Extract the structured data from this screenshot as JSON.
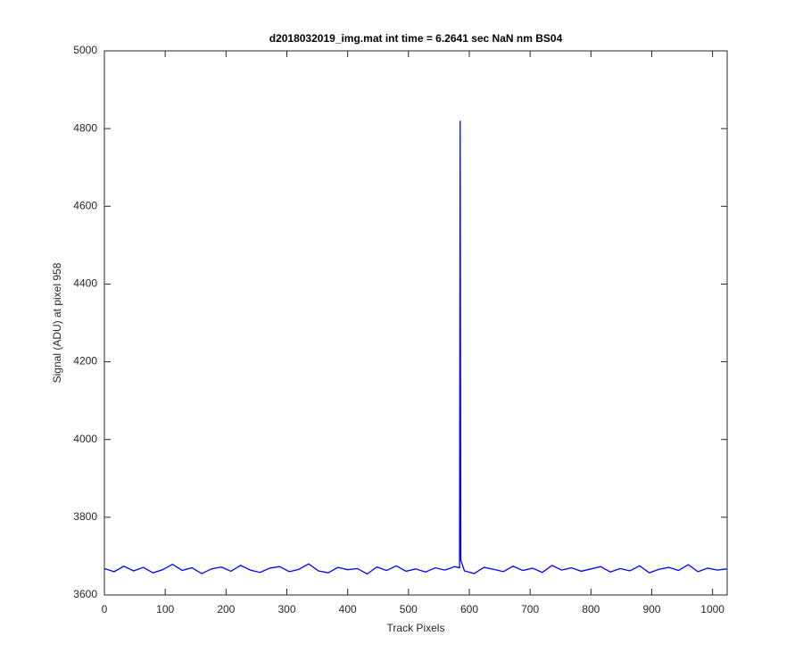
{
  "chart_data": {
    "type": "line",
    "title": "d2018032019_img.mat int time = 6.2641 sec  NaN nm BS04",
    "x_label": "Track Pixels",
    "y_label": "Signal (ADU) at pixel 958",
    "color": "#0000ff",
    "x": [
      0,
      16,
      32,
      48,
      64,
      80,
      96,
      112,
      128,
      144,
      160,
      176,
      192,
      208,
      224,
      240,
      256,
      272,
      288,
      304,
      320,
      336,
      352,
      368,
      384,
      400,
      416,
      432,
      448,
      464,
      480,
      496,
      512,
      528,
      544,
      560,
      576,
      584,
      585,
      586,
      592,
      608,
      624,
      640,
      656,
      672,
      688,
      704,
      720,
      736,
      752,
      768,
      784,
      800,
      816,
      832,
      848,
      864,
      880,
      896,
      912,
      928,
      944,
      960,
      976,
      992,
      1008,
      1023
    ],
    "values": [
      3668,
      3660,
      3674,
      3662,
      3671,
      3657,
      3665,
      3679,
      3663,
      3670,
      3655,
      3667,
      3672,
      3661,
      3676,
      3664,
      3658,
      3669,
      3673,
      3660,
      3666,
      3680,
      3662,
      3657,
      3671,
      3665,
      3668,
      3654,
      3672,
      3663,
      3675,
      3661,
      3667,
      3659,
      3670,
      3664,
      3673,
      3670,
      4820,
      3690,
      3662,
      3655,
      3671,
      3666,
      3660,
      3674,
      3663,
      3669,
      3658,
      3676,
      3664,
      3670,
      3661,
      3667,
      3673,
      3659,
      3668,
      3662,
      3675,
      3657,
      3666,
      3671,
      3663,
      3678,
      3660,
      3669,
      3664,
      3667
    ],
    "xlim": [
      0,
      1024
    ],
    "ylim": [
      3600,
      5000
    ],
    "xticks": [
      0,
      100,
      200,
      300,
      400,
      500,
      600,
      700,
      800,
      900,
      1000
    ],
    "yticks": [
      3600,
      3800,
      4000,
      4200,
      4400,
      4600,
      4800,
      5000
    ]
  }
}
